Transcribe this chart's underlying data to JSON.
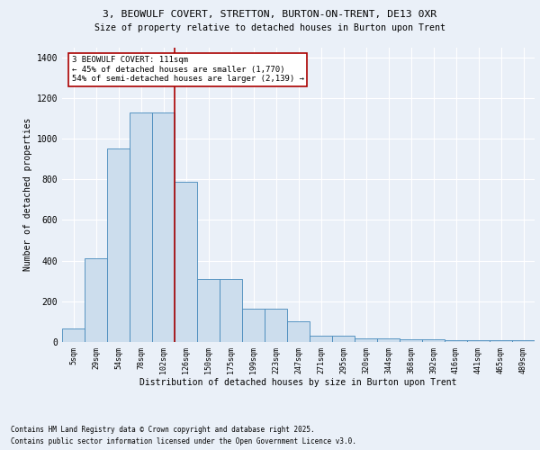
{
  "title1": "3, BEOWULF COVERT, STRETTON, BURTON-ON-TRENT, DE13 0XR",
  "title2": "Size of property relative to detached houses in Burton upon Trent",
  "xlabel": "Distribution of detached houses by size in Burton upon Trent",
  "ylabel": "Number of detached properties",
  "bar_labels": [
    "5sqm",
    "29sqm",
    "54sqm",
    "78sqm",
    "102sqm",
    "126sqm",
    "150sqm",
    "175sqm",
    "199sqm",
    "223sqm",
    "247sqm",
    "271sqm",
    "295sqm",
    "320sqm",
    "344sqm",
    "368sqm",
    "392sqm",
    "416sqm",
    "441sqm",
    "465sqm",
    "489sqm"
  ],
  "bar_heights": [
    65,
    410,
    950,
    1130,
    1130,
    790,
    310,
    310,
    165,
    165,
    100,
    30,
    30,
    18,
    18,
    15,
    12,
    10,
    8,
    8,
    8
  ],
  "bar_color": "#ccdded",
  "bar_edge_color": "#4488bb",
  "vline_x": 4.5,
  "vline_color": "#aa0000",
  "annotation_text": "3 BEOWULF COVERT: 111sqm\n← 45% of detached houses are smaller (1,770)\n54% of semi-detached houses are larger (2,139) →",
  "annotation_box_facecolor": "white",
  "annotation_box_edgecolor": "#aa0000",
  "ylim": [
    0,
    1450
  ],
  "yticks": [
    0,
    200,
    400,
    600,
    800,
    1000,
    1200,
    1400
  ],
  "background_color": "#eaf0f8",
  "axes_bg_color": "#eaf0f8",
  "grid_color": "#ffffff",
  "footer1": "Contains HM Land Registry data © Crown copyright and database right 2025.",
  "footer2": "Contains public sector information licensed under the Open Government Licence v3.0."
}
